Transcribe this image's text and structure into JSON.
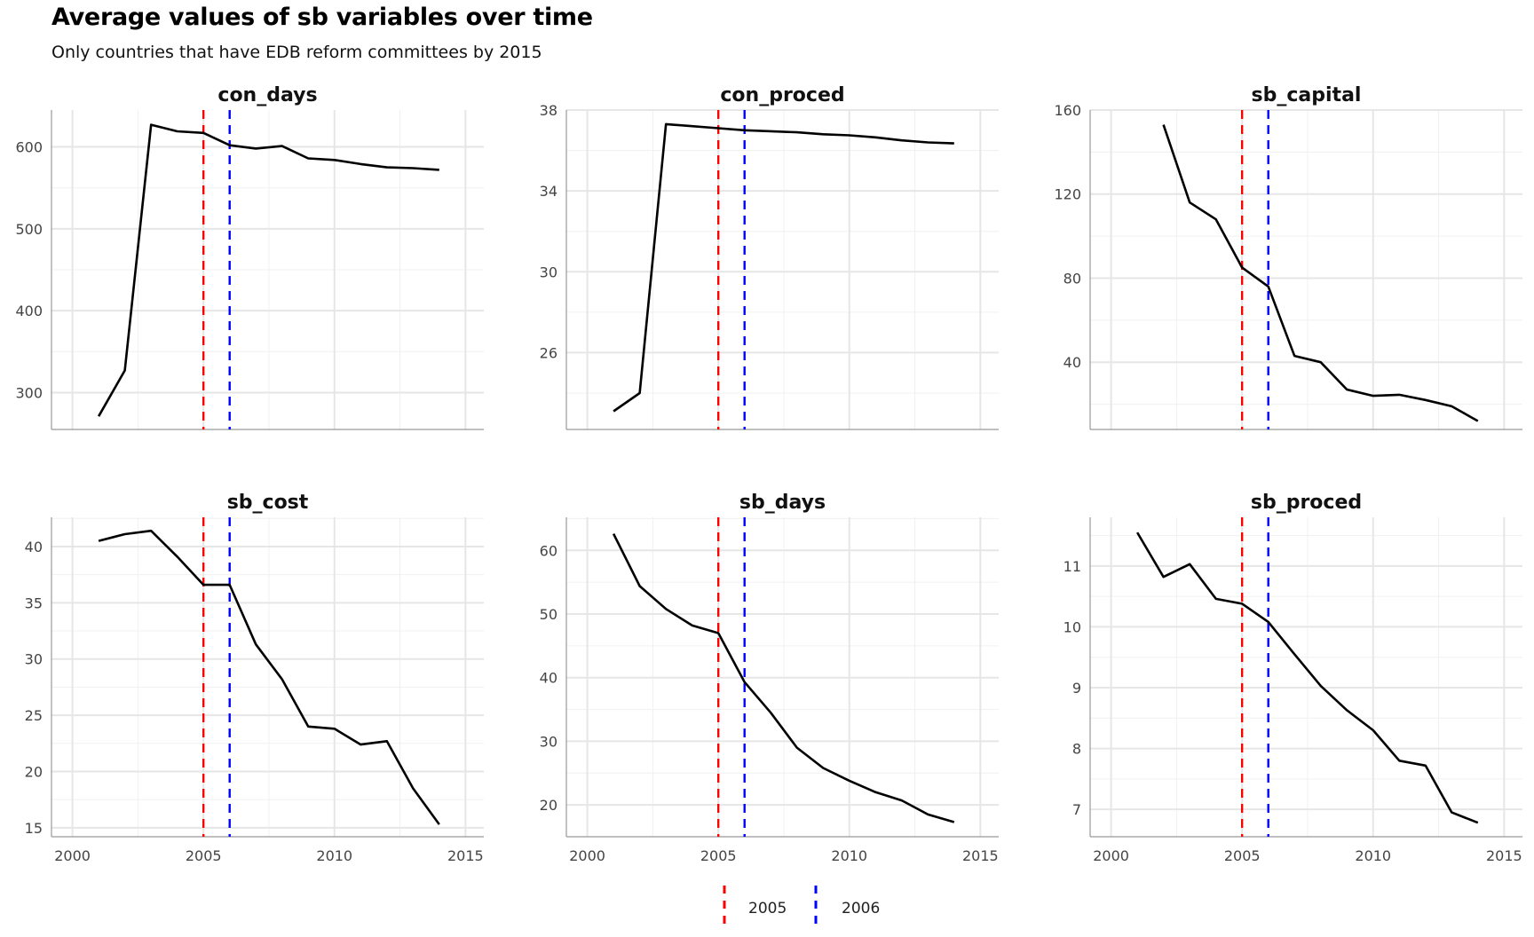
{
  "title": "Average values of sb variables over time",
  "subtitle": "Only countries that have EDB reform committees by 2015",
  "colors": {
    "line": "#000000",
    "vline_2005": "#ff0000",
    "vline_2006": "#0000ff",
    "grid": "#e6e6e6"
  },
  "legend": {
    "items": [
      {
        "label": "2005",
        "color": "#ff0000"
      },
      {
        "label": "2006",
        "color": "#0000ff"
      }
    ],
    "position": "bottom"
  },
  "chart_data": [
    {
      "type": "line",
      "title": "con_days",
      "x": [
        2001,
        2002,
        2003,
        2004,
        2005,
        2006,
        2007,
        2008,
        2009,
        2010,
        2011,
        2012,
        2013,
        2014
      ],
      "y": [
        271,
        327,
        627,
        619,
        617,
        602,
        598,
        601,
        586,
        584,
        579,
        575,
        574,
        572
      ],
      "xlim": [
        1999.2,
        2015.7
      ],
      "ylim": [
        255,
        645
      ],
      "xticks": [
        2000,
        2005,
        2010,
        2015
      ],
      "yticks": [
        300,
        400,
        500,
        600
      ],
      "vlines": [
        2005,
        2006
      ],
      "show_x_ticklabels": false
    },
    {
      "type": "line",
      "title": "con_proced",
      "x": [
        2001,
        2002,
        2003,
        2004,
        2005,
        2006,
        2007,
        2008,
        2009,
        2010,
        2011,
        2012,
        2013,
        2014
      ],
      "y": [
        23.1,
        24.0,
        37.3,
        37.2,
        37.1,
        37.0,
        36.95,
        36.9,
        36.8,
        36.75,
        36.65,
        36.5,
        36.4,
        36.35
      ],
      "xlim": [
        1999.2,
        2015.7
      ],
      "ylim": [
        22.2,
        38.0
      ],
      "xticks": [
        2000,
        2005,
        2010,
        2015
      ],
      "yticks": [
        26,
        30,
        34,
        38
      ],
      "vlines": [
        2005,
        2006
      ],
      "show_x_ticklabels": false
    },
    {
      "type": "line",
      "title": "sb_capital",
      "x": [
        2002,
        2003,
        2004,
        2005,
        2006,
        2007,
        2008,
        2009,
        2010,
        2011,
        2012,
        2013,
        2014
      ],
      "y": [
        153,
        116,
        108,
        85,
        76,
        43,
        40,
        27,
        24,
        24.5,
        22,
        19,
        12
      ],
      "xlim": [
        1999.2,
        2015.7
      ],
      "ylim": [
        8,
        160
      ],
      "xticks": [
        2000,
        2005,
        2010,
        2015
      ],
      "yticks": [
        40,
        80,
        120,
        160
      ],
      "vlines": [
        2005,
        2006
      ],
      "show_x_ticklabels": false
    },
    {
      "type": "line",
      "title": "sb_cost",
      "x": [
        2001,
        2002,
        2003,
        2004,
        2005,
        2006,
        2007,
        2008,
        2009,
        2010,
        2011,
        2012,
        2013,
        2014
      ],
      "y": [
        40.5,
        41.1,
        41.4,
        39.1,
        36.6,
        36.6,
        31.3,
        28.2,
        24.0,
        23.8,
        22.4,
        22.7,
        18.5,
        15.3
      ],
      "xlim": [
        1999.2,
        2015.7
      ],
      "ylim": [
        14.2,
        42.6
      ],
      "xticks": [
        2000,
        2005,
        2010,
        2015
      ],
      "yticks": [
        15,
        20,
        25,
        30,
        35,
        40
      ],
      "vlines": [
        2005,
        2006
      ],
      "show_x_ticklabels": true
    },
    {
      "type": "line",
      "title": "sb_days",
      "x": [
        2001,
        2002,
        2003,
        2004,
        2005,
        2006,
        2007,
        2008,
        2009,
        2010,
        2011,
        2012,
        2013,
        2014
      ],
      "y": [
        62.6,
        54.4,
        50.8,
        48.2,
        47.0,
        39.3,
        34.5,
        29.0,
        25.8,
        23.8,
        22.0,
        20.7,
        18.5,
        17.3
      ],
      "xlim": [
        1999.2,
        2015.7
      ],
      "ylim": [
        15.0,
        65.2
      ],
      "xticks": [
        2000,
        2005,
        2010,
        2015
      ],
      "yticks": [
        20,
        30,
        40,
        50,
        60
      ],
      "vlines": [
        2005,
        2006
      ],
      "show_x_ticklabels": true
    },
    {
      "type": "line",
      "title": "sb_proced",
      "x": [
        2001,
        2002,
        2003,
        2004,
        2005,
        2006,
        2007,
        2008,
        2009,
        2010,
        2011,
        2012,
        2013,
        2014
      ],
      "y": [
        11.55,
        10.82,
        11.03,
        10.46,
        10.38,
        10.08,
        9.55,
        9.03,
        8.63,
        8.3,
        7.8,
        7.72,
        6.95,
        6.78
      ],
      "xlim": [
        1999.2,
        2015.7
      ],
      "ylim": [
        6.55,
        11.8
      ],
      "xticks": [
        2000,
        2005,
        2010,
        2015
      ],
      "yticks": [
        7,
        8,
        9,
        10,
        11
      ],
      "vlines": [
        2005,
        2006
      ],
      "show_x_ticklabels": true
    }
  ]
}
